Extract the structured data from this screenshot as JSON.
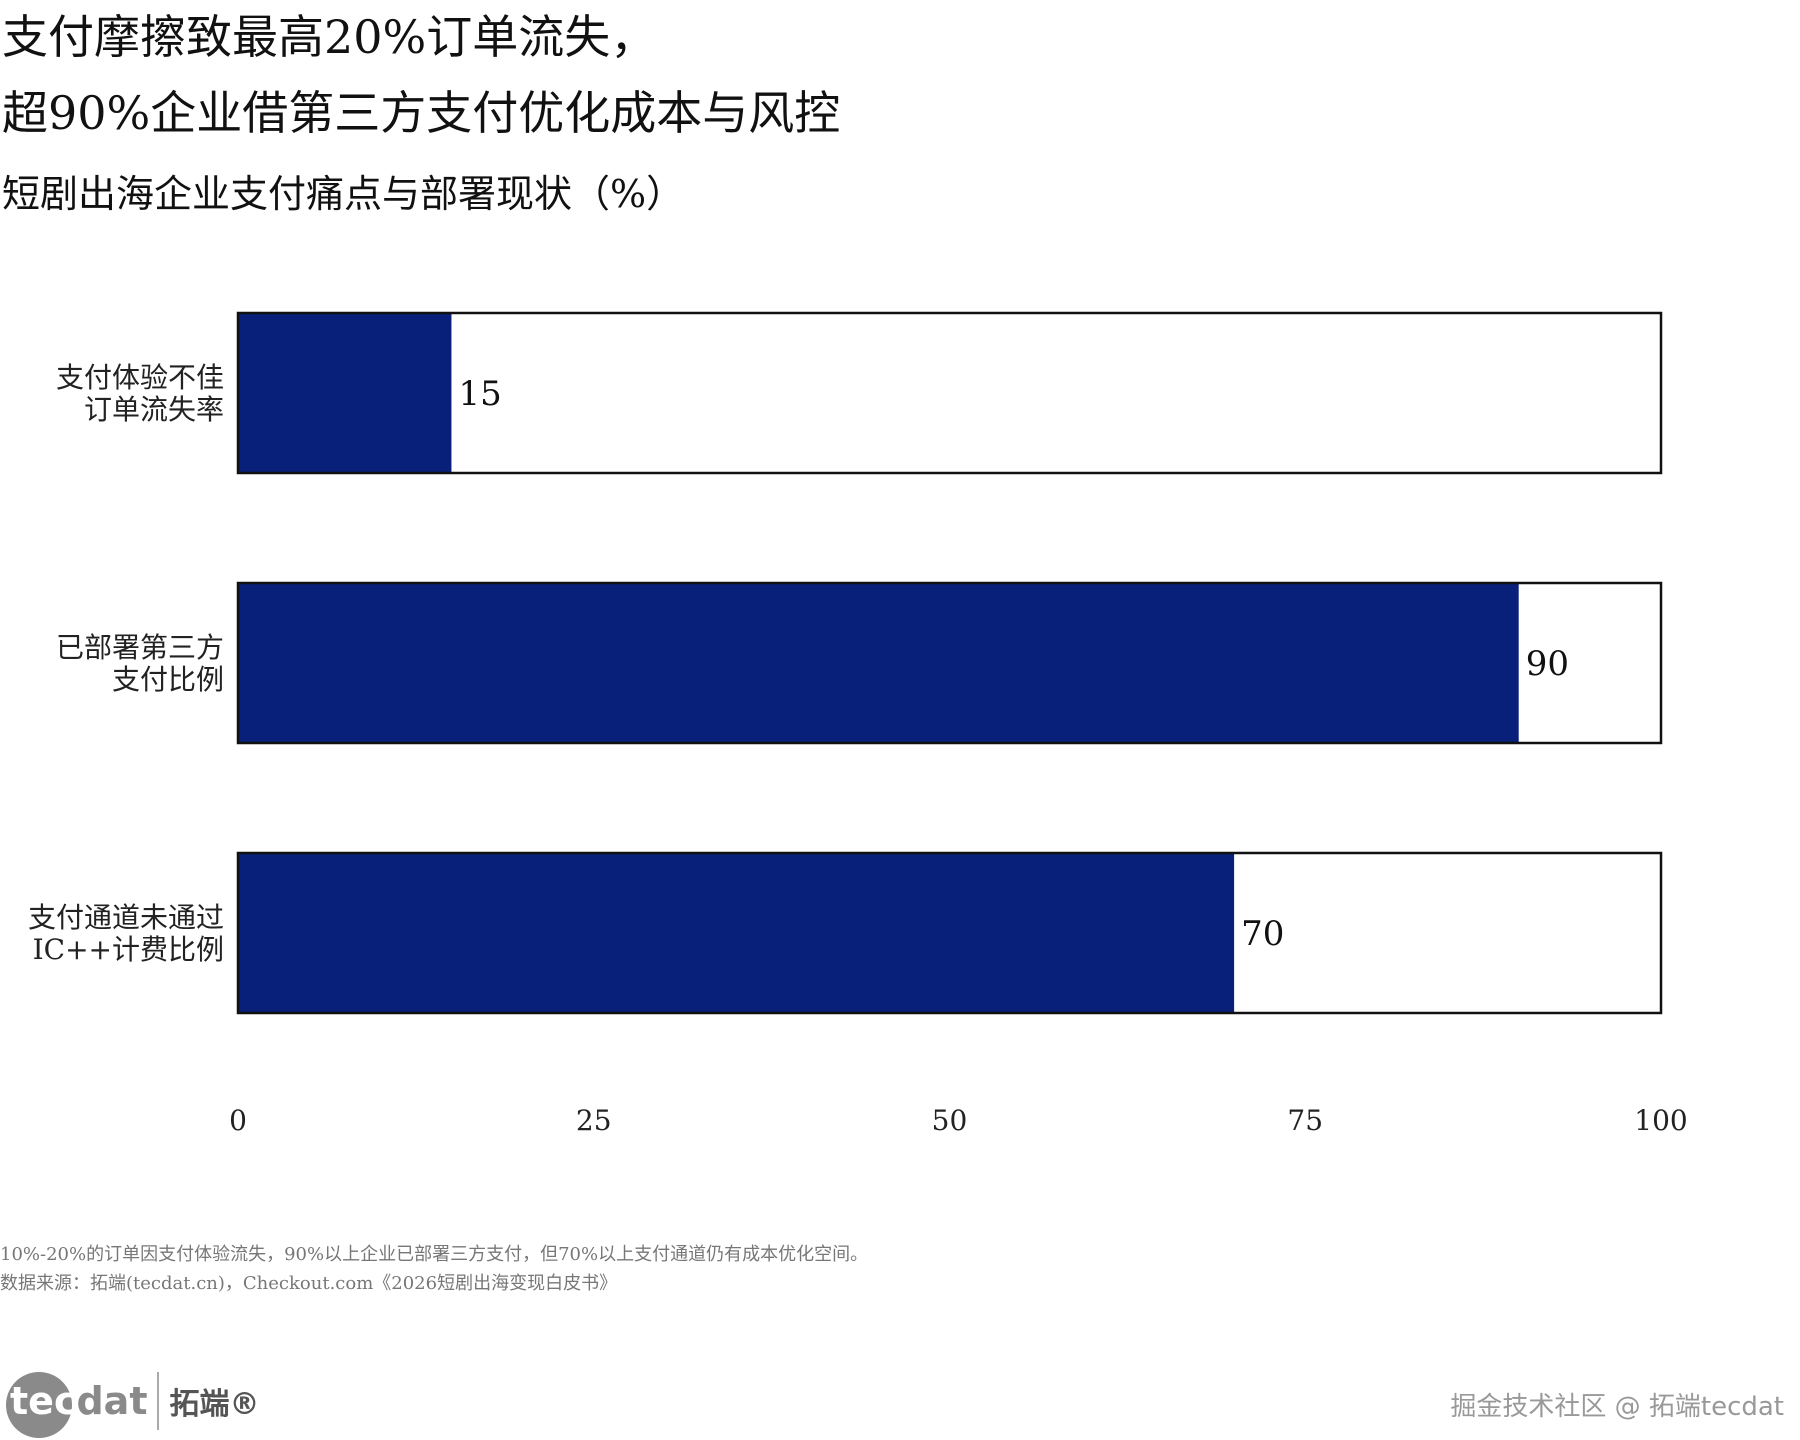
{
  "title_lines": [
    "支付摩擦致最高20%订单流失，",
    "超90%企业借第三方支付优化成本与风控"
  ],
  "subtitle": "短剧出海企业支付痛点与部署现状（%）",
  "chart_data": {
    "type": "bar",
    "orientation": "horizontal",
    "categories": [
      [
        "支付体验不佳",
        "订单流失率"
      ],
      [
        "已部署第三方",
        "支付比例"
      ],
      [
        "支付通道未通过",
        "IC++计费比例"
      ]
    ],
    "values": [
      15,
      90,
      70
    ],
    "xlim": [
      0,
      100
    ],
    "xticks": [
      0,
      25,
      50,
      75,
      100
    ],
    "bar_color": "#08207a",
    "grid": false
  },
  "footnotes": [
    "10%-20%的订单因支付体验流失，90%以上企业已部署三方支付，但70%以上支付通道仍有成本优化空间。",
    "数据来源：拓端(tecdat.cn)，Checkout.com《2026短剧出海变现白皮书》"
  ],
  "logo": {
    "tec": "tec",
    "dat": "dat",
    "cn": "拓端®"
  },
  "watermark": "掘金技术社区 @ 拓端tecdat"
}
